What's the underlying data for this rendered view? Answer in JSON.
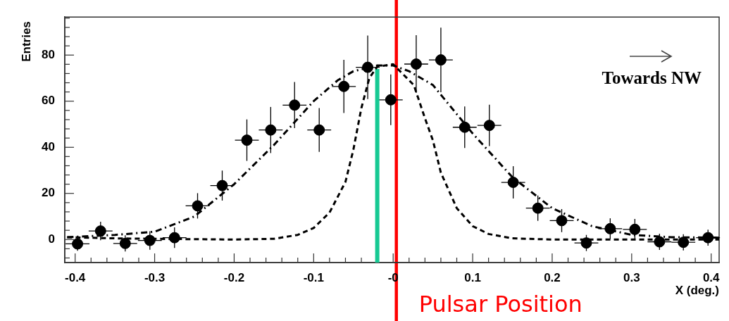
{
  "chart_data": {
    "type": "scatter",
    "xlabel": "X (deg.)",
    "ylabel": "Entries",
    "xlim": [
      -0.413,
      0.41
    ],
    "ylim": [
      -10,
      96.5
    ],
    "xticks": [
      -0.4,
      {
        "value": -0.38,
        "label": null
      },
      {
        "value": -0.36,
        "label": null
      },
      {
        "value": -0.34,
        "label": null
      },
      {
        "value": -0.32,
        "label": null
      },
      -0.3,
      {
        "value": -0.28,
        "label": null
      },
      {
        "value": -0.26,
        "label": null
      },
      {
        "value": -0.24,
        "label": null
      },
      {
        "value": -0.22,
        "label": null
      },
      -0.2,
      {
        "value": -0.18,
        "label": null
      },
      {
        "value": -0.16,
        "label": null
      },
      {
        "value": -0.14,
        "label": null
      },
      {
        "value": -0.12,
        "label": null
      },
      -0.1,
      {
        "value": -0.08,
        "label": null
      },
      {
        "value": -0.06,
        "label": null
      },
      {
        "value": -0.04,
        "label": null
      },
      {
        "value": -0.02,
        "label": null
      },
      {
        "value": 0,
        "label": "-0"
      },
      {
        "value": 0.02,
        "label": null
      },
      {
        "value": 0.04,
        "label": null
      },
      {
        "value": 0.06,
        "label": null
      },
      {
        "value": 0.08,
        "label": null
      },
      0.1,
      {
        "value": 0.12,
        "label": null
      },
      {
        "value": 0.14,
        "label": null
      },
      {
        "value": 0.16,
        "label": null
      },
      {
        "value": 0.18,
        "label": null
      },
      0.2,
      {
        "value": 0.22,
        "label": null
      },
      {
        "value": 0.24,
        "label": null
      },
      {
        "value": 0.26,
        "label": null
      },
      {
        "value": 0.28,
        "label": null
      },
      0.3,
      {
        "value": 0.32,
        "label": null
      },
      {
        "value": 0.34,
        "label": null
      },
      {
        "value": 0.36,
        "label": null
      },
      {
        "value": 0.38,
        "label": null
      },
      0.4
    ],
    "yticks": [
      {
        "value": -8,
        "label": null
      },
      {
        "value": -4,
        "label": null
      },
      0,
      {
        "value": 4,
        "label": null
      },
      {
        "value": 8,
        "label": null
      },
      {
        "value": 12,
        "label": null
      },
      {
        "value": 16,
        "label": null
      },
      20,
      {
        "value": 24,
        "label": null
      },
      {
        "value": 28,
        "label": null
      },
      {
        "value": 32,
        "label": null
      },
      {
        "value": 36,
        "label": null
      },
      40,
      {
        "value": 44,
        "label": null
      },
      {
        "value": 48,
        "label": null
      },
      {
        "value": 52,
        "label": null
      },
      {
        "value": 56,
        "label": null
      },
      60,
      {
        "value": 64,
        "label": null
      },
      {
        "value": 68,
        "label": null
      },
      {
        "value": 72,
        "label": null
      },
      {
        "value": 76,
        "label": null
      },
      80,
      {
        "value": 84,
        "label": null
      },
      {
        "value": 88,
        "label": null
      },
      {
        "value": 92,
        "label": null
      },
      {
        "value": 96,
        "label": null
      }
    ],
    "series": [
      {
        "color": "#000000",
        "marker": "circle",
        "x": [
          -0.397,
          -0.368,
          -0.337,
          -0.306,
          -0.275,
          -0.246,
          -0.215,
          -0.184,
          -0.154,
          -0.124,
          -0.093,
          -0.062,
          -0.032,
          -0.003,
          0.029,
          0.06,
          0.09,
          0.121,
          0.151,
          0.182,
          0.212,
          0.243,
          0.273,
          0.304,
          0.335,
          0.365,
          0.396
        ],
        "values": [
          -1.9,
          3.7,
          -1.7,
          -0.4,
          0.8,
          14.6,
          23.4,
          43.1,
          47.5,
          58.3,
          47.5,
          66.4,
          74.7,
          60.6,
          76.1,
          77.9,
          48.7,
          49.5,
          24.8,
          13.6,
          8.2,
          -1.5,
          4.7,
          4.4,
          -1,
          -1.2,
          0.8
        ],
        "errors": [
          3,
          4,
          3.5,
          4,
          4.5,
          5.5,
          6.5,
          9,
          10,
          10,
          9.5,
          11.5,
          13.8,
          11,
          12.5,
          14,
          9,
          9,
          7,
          5.5,
          5,
          3.5,
          4.5,
          4.5,
          3.5,
          3.5,
          3.5
        ],
        "xerrors": [
          0.015,
          0.015,
          0.015,
          0.015,
          0.015,
          0.015,
          0.015,
          0.015,
          0.015,
          0.015,
          0.015,
          0.015,
          0.015,
          0.015,
          0.015,
          0.015,
          0.015,
          0.015,
          0.015,
          0.015,
          0.015,
          0.015,
          0.015,
          0.015,
          0.015,
          0.015,
          0.015
        ]
      },
      {
        "type": "line",
        "color": "#000000",
        "marker": "none",
        "line_style": "dashdot",
        "x": [
          -0.41,
          -0.35,
          -0.3,
          -0.25,
          -0.2,
          -0.15,
          -0.1,
          -0.07,
          -0.05,
          -0.02,
          0,
          0.02,
          0.05,
          0.1,
          0.15,
          0.2,
          0.25,
          0.3,
          0.35,
          0.41
        ],
        "values": [
          1,
          2,
          3.4,
          10,
          24,
          41,
          60,
          69,
          73,
          75.5,
          75.5,
          73,
          67,
          46,
          27,
          13.6,
          5.8,
          2,
          1,
          0.8
        ]
      },
      {
        "type": "line",
        "color": "#000000",
        "marker": "none",
        "line_style": "dashed",
        "x": [
          -0.41,
          -0.35,
          -0.3,
          -0.2,
          -0.15,
          -0.12,
          -0.1,
          -0.08,
          -0.06,
          -0.05,
          -0.04,
          -0.03,
          -0.02,
          0,
          0.026,
          0.04,
          0.05,
          0.06,
          0.08,
          0.1,
          0.12,
          0.15,
          0.2,
          0.41
        ],
        "values": [
          1,
          0.5,
          0.3,
          0,
          0.3,
          2,
          5,
          11.7,
          25,
          39,
          57,
          70,
          75,
          76,
          67,
          52.6,
          43,
          29,
          13.6,
          5.8,
          2.4,
          0.5,
          0,
          0
        ]
      },
      {
        "type": "line",
        "color": "#16c993",
        "marker": "none",
        "line_style": "solid",
        "x": [
          -0.02,
          -0.02
        ],
        "values": [
          -10,
          74
        ]
      }
    ],
    "ref_lines": [
      {
        "axis": "x",
        "value": 0.004,
        "label": "Pulsar Position",
        "color": "#ff0000",
        "line_style": "solid"
      }
    ],
    "annotations": [
      "Towards NW"
    ]
  }
}
